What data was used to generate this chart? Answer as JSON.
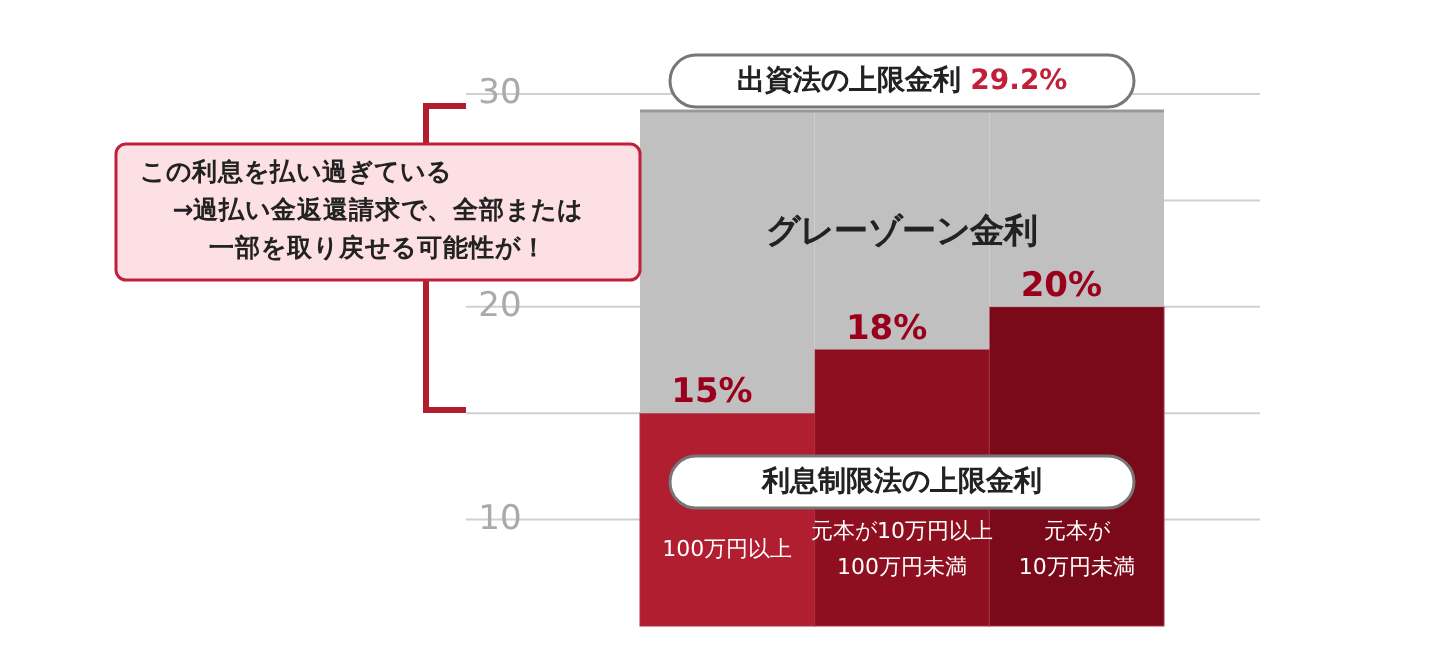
{
  "chart_data": {
    "type": "bar",
    "stacked": true,
    "grid": "y",
    "categories": [
      "100万円以上",
      "元本が10万円以上\n100万円未満",
      "元本が\n10万円未満"
    ],
    "ylim": [
      5,
      30
    ],
    "yticks": [
      10,
      {
        "value": 15,
        "label": null
      },
      20,
      {
        "value": 25,
        "label": null
      },
      30
    ],
    "series": [
      {
        "colors": [
          "#b01e2f",
          "#8e0f20",
          "#7a0a1a"
        ],
        "values": [
          15,
          18,
          20
        ],
        "value_labels": [
          "15%",
          "18%",
          "20%"
        ]
      },
      {
        "name": "グレーゾーン金利",
        "color": "#c0c0c0",
        "values": [
          14.2,
          11.2,
          9.2
        ]
      }
    ],
    "ref_lines": [
      {
        "axis": "y",
        "value": 29.2,
        "label": "出資法の上限金利 29.2%"
      }
    ],
    "annotations": [
      "この利息を払い過ぎている",
      "→過払い金返還請求で、全部または一部を取り戻せる可能性が！",
      "利息制限法の上限金利"
    ]
  }
}
